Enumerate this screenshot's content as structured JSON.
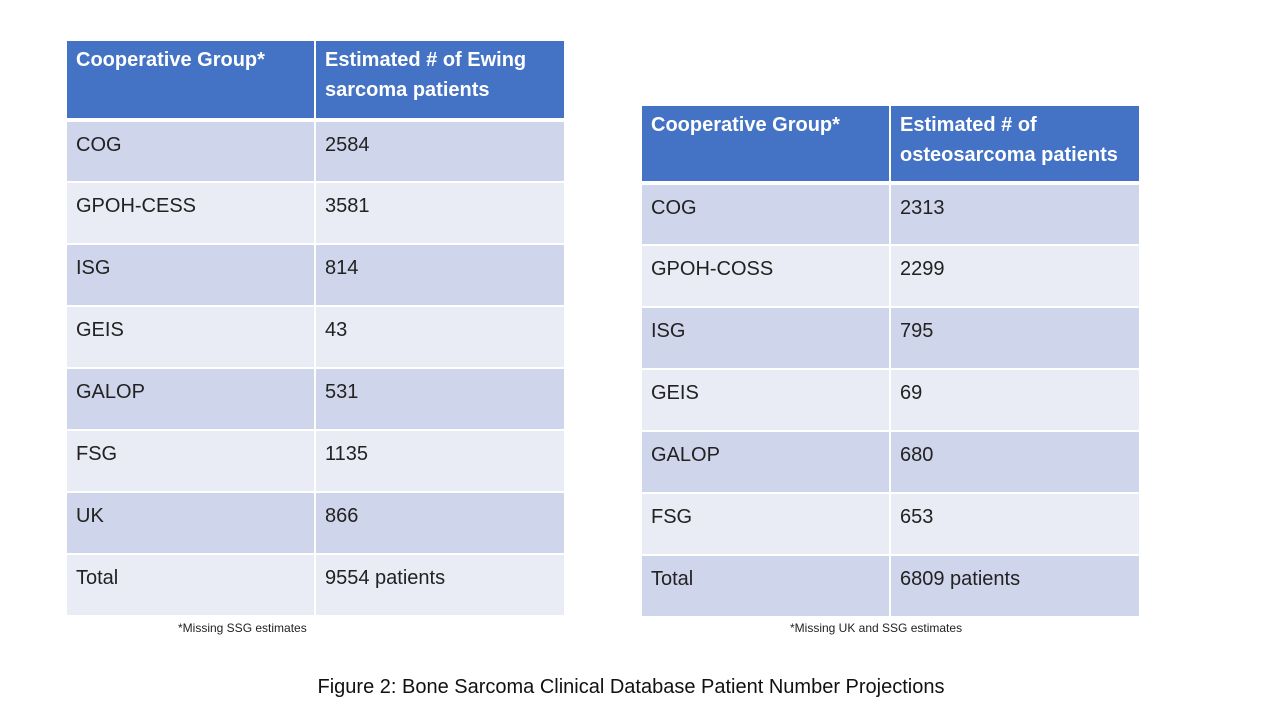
{
  "ewing_table": {
    "headers": [
      "Cooperative Group*",
      "Estimated # of Ewing sarcoma patients"
    ],
    "rows": [
      [
        "COG",
        "2584"
      ],
      [
        "GPOH-CESS",
        "3581"
      ],
      [
        "ISG",
        "814"
      ],
      [
        "GEIS",
        "43"
      ],
      [
        "GALOP",
        "531"
      ],
      [
        "FSG",
        "1135"
      ],
      [
        "UK",
        "866"
      ],
      [
        "Total",
        "9554 patients"
      ]
    ],
    "footnote": "*Missing SSG estimates"
  },
  "osteo_table": {
    "headers": [
      "Cooperative Group*",
      "Estimated # of osteosarcoma patients"
    ],
    "rows": [
      [
        "COG",
        "2313"
      ],
      [
        "GPOH-COSS",
        "2299"
      ],
      [
        "ISG",
        "795"
      ],
      [
        "GEIS",
        "69"
      ],
      [
        "GALOP",
        "680"
      ],
      [
        "FSG",
        "653"
      ],
      [
        "Total",
        "6809 patients"
      ]
    ],
    "footnote": "*Missing UK and SSG estimates"
  },
  "caption": "Figure 2: Bone Sarcoma Clinical Database Patient Number Projections",
  "colors": {
    "header_bg": "#4472C4",
    "row_dark": "#CFD5EA",
    "row_light": "#E9EBF5"
  }
}
